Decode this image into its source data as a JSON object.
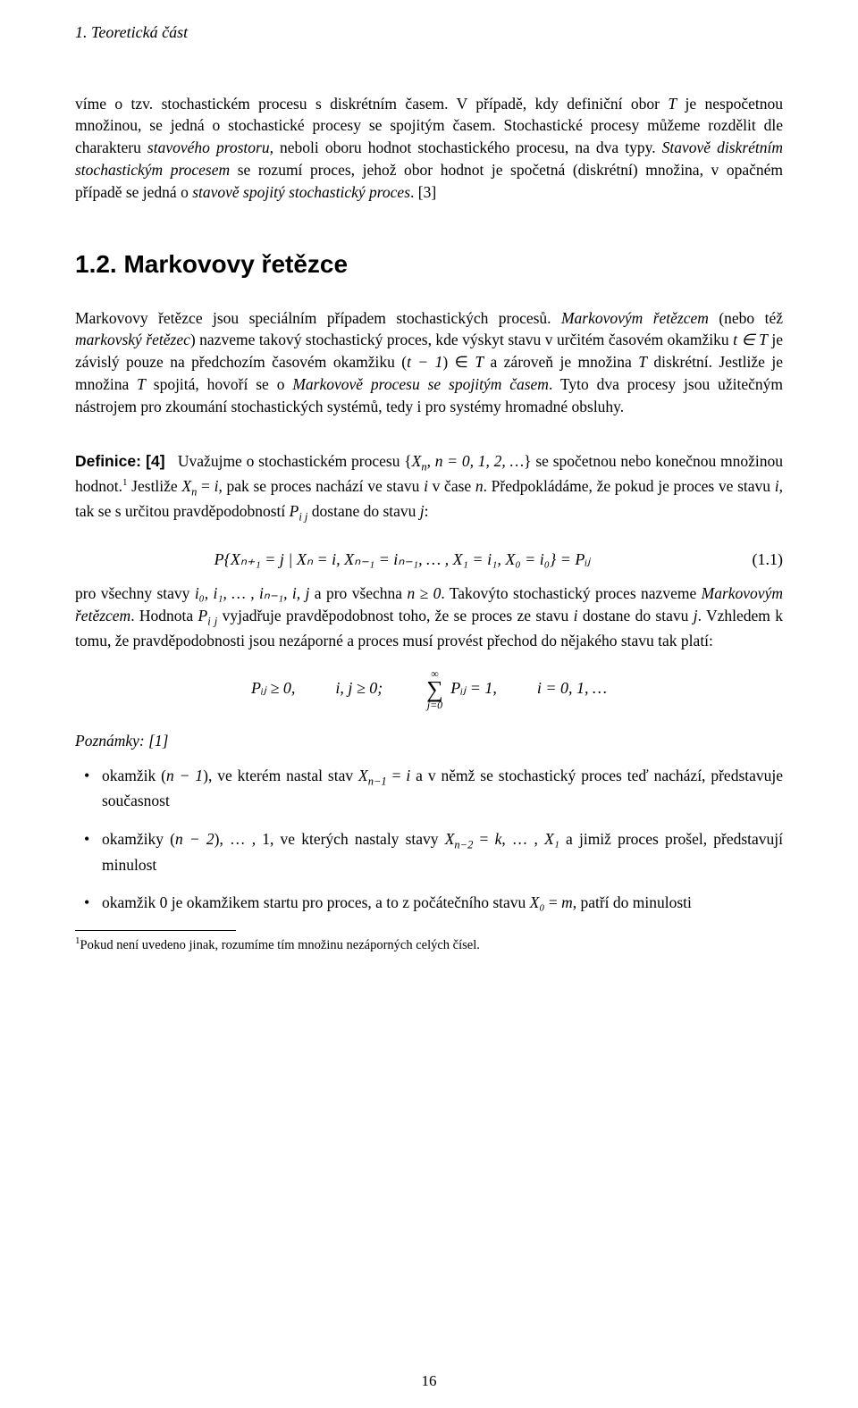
{
  "running_head": "1. Teoretická část",
  "para1_a": "víme o tzv. stochastickém procesu s diskrétním časem. V případě, kdy definiční obor ",
  "para1_T": "T",
  "para1_b": " je nespočetnou množinou, se jedná o stochastické procesy se spojitým časem. Stochastické procesy můžeme rozdělit dle charakteru ",
  "para1_i1": "stavového prostoru",
  "para1_c": ", neboli oboru hodnot stochastického procesu, na dva typy. ",
  "para1_i2": "Stavově diskrétním stochastickým procesem",
  "para1_d": " se rozumí proces, jehož obor hodnot je spočetná (diskrétní) množina, v opačném případě se jedná o ",
  "para1_i3": "stavově spojitý stochastický proces",
  "para1_e": ". [3]",
  "section_title": "1.2. Markovovy řetězce",
  "para2_a": "Markovovy řetězce jsou speciálním případem stochastických procesů. ",
  "para2_i1": "Markovovým řetězcem",
  "para2_b": " (nebo též ",
  "para2_i2": "markovský řetězec",
  "para2_c": ") nazveme takový stochastický proces, kde výskyt stavu v určitém časovém okamžiku ",
  "para2_m1": "t ∈ T",
  "para2_d": " je závislý pouze na předchozím časovém okamžiku (",
  "para2_m2": "t − 1",
  "para2_e": ") ∈ ",
  "para2_m3": "T",
  "para2_f": " a zároveň je množina ",
  "para2_m4": "T",
  "para2_g": " diskrétní. Jestliže je množina ",
  "para2_m5": "T",
  "para2_h": " spojitá, hovoří se o ",
  "para2_i3": "Markovově procesu se spojitým časem",
  "para2_i": ". Tyto dva procesy jsou užitečným nástrojem pro zkoumání stochastických systémů, tedy i pro systémy hromadné obsluhy.",
  "def_label": "Definice: [4]",
  "def_a": "Uvažujme o stochastickém procesu {",
  "def_Xn": "X",
  "def_n": "n",
  "def_b": ", ",
  "def_cond": "n = 0, 1, 2, …",
  "def_c": "} se spočetnou nebo konečnou množinou hodnot.",
  "def_fn_mark": "1",
  "def_d": " Jestliže ",
  "def_e": " = ",
  "def_i": "i",
  "def_f": ", pak se proces nachází ve stavu ",
  "def_g": " v čase ",
  "def_nn": "n",
  "def_h": ". Předpokládáme, že pokud je proces ve stavu ",
  "def_j": ", tak se s určitou pravděpodobností ",
  "def_P": "P",
  "def_ij": "i j",
  "def_k": " dostane do stavu ",
  "def_jj": "j",
  "def_l": ":",
  "eq1": "P{Xₙ₊₁ = j | Xₙ = i, Xₙ₋₁ = iₙ₋₁, … , X₁ = i₁, X₀ = i₀} = Pᵢⱼ",
  "eq1_num": "(1.1)",
  "para3_a": "pro všechny stavy ",
  "para3_seq": "i₀, i₁, … , iₙ₋₁, i, j",
  "para3_b": " a pro všechna ",
  "para3_n0": "n ≥ 0",
  "para3_c": ". Takovýto stochastický proces nazveme ",
  "para3_i1": "Markovovým řetězcem",
  "para3_d": ". Hodnota ",
  "para3_e": " vyjadřuje pravděpodobnost toho, že se proces ze stavu ",
  "para3_f": " dostane do stavu ",
  "para3_g": ". Vzhledem k tomu, že pravděpodobnosti jsou nezáporné a proces musí provést přechod do nějakého stavu tak platí:",
  "eq2_p1": "Pᵢⱼ ≥ 0,",
  "eq2_p2": "i, j ≥ 0;",
  "eq2_sum_top": "∞",
  "eq2_sum_bot": "j=0",
  "eq2_p3": "Pᵢⱼ = 1,",
  "eq2_p4": "i = 0, 1, …",
  "notes_label": "Poznámky: [1]",
  "b1_a": "okamžik (",
  "b1_m1": "n − 1",
  "b1_b": "), ve kterém nastal stav ",
  "b1_X": "X",
  "b1_sub": "n−1",
  "b1_eq": " = ",
  "b1_i": "i",
  "b1_c": " a v němž se stochastický proces teď nachází, představuje současnost",
  "b2_a": "okamžiky (",
  "b2_m1": "n − 2",
  "b2_b": "), … , 1, ve kterých nastaly stavy ",
  "b2_sub": "n−2",
  "b2_eq": " = ",
  "b2_k": "k",
  "b2_c": ", … , ",
  "b2_X1": "X₁",
  "b2_d": " a jimiž proces prošel, představují minulost",
  "b3_a": "okamžik 0 je okamžikem startu pro proces, a to z počátečního stavu ",
  "b3_X0": "X₀",
  "b3_eq": " = ",
  "b3_m": "m",
  "b3_b": ", patří do minulosti",
  "footnote": "Pokud není uvedeno jinak, rozumíme tím množinu nezáporných celých čísel.",
  "footnote_mark": "1",
  "page_number": "16"
}
